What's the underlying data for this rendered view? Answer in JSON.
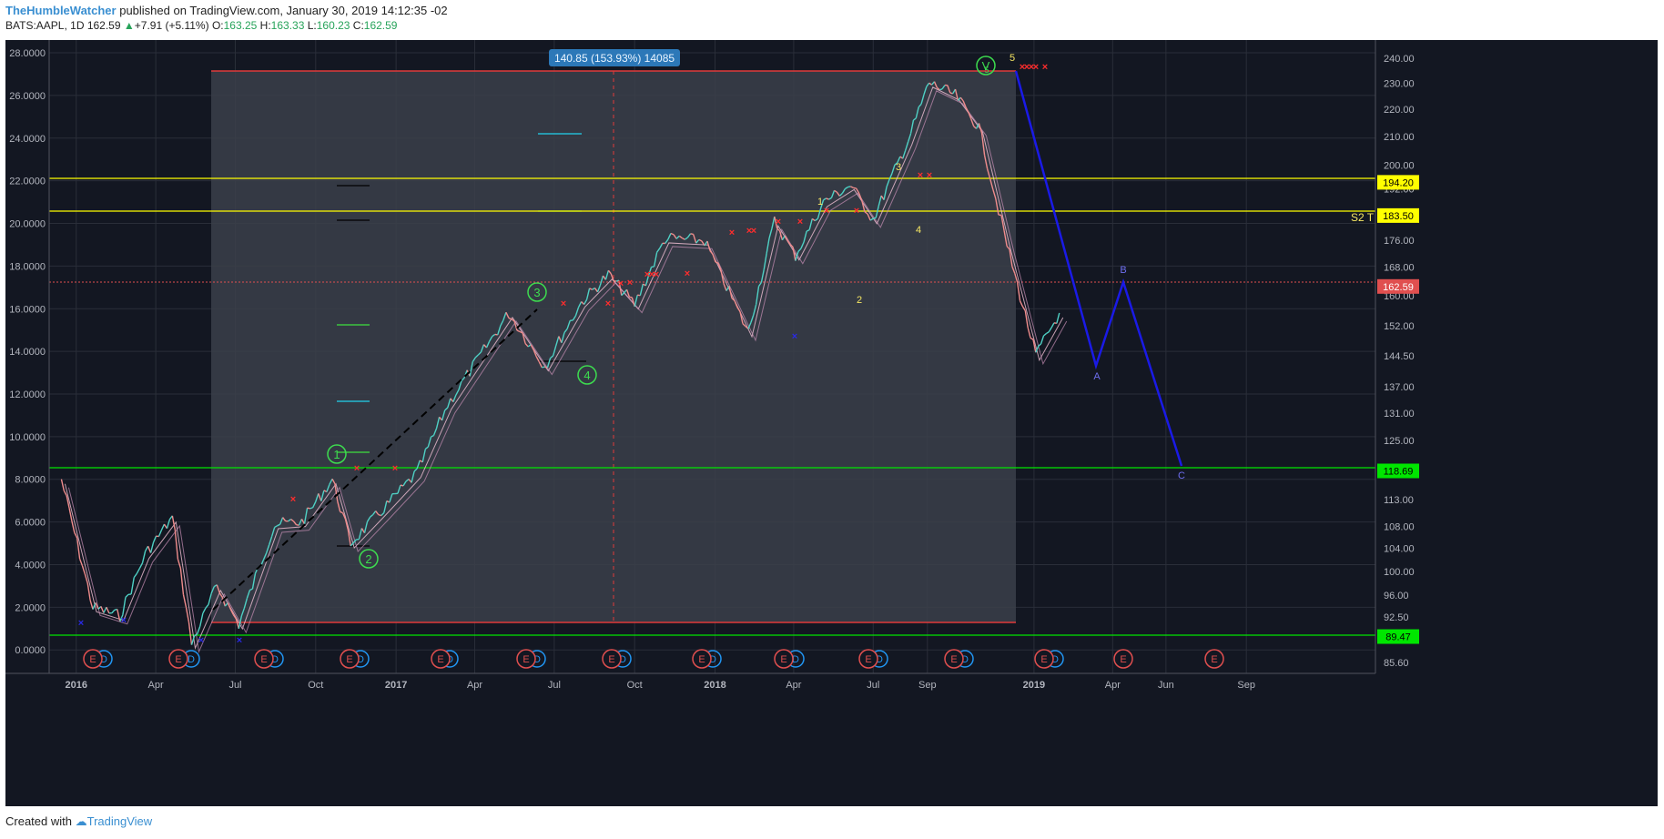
{
  "header": {
    "author": "TheHumbleWatcher",
    "published": "published on TradingView.com, January 30, 2019 14:12:35 -02",
    "symbol": "BATS:AAPL, 1D",
    "last": "162.59",
    "change": "+7.91 (+5.11%)",
    "open_label": "O:",
    "open": "163.25",
    "high_label": "H:",
    "high": "163.33",
    "low_label": "L:",
    "low": "160.23",
    "close_label": "C:",
    "close": "162.59"
  },
  "footer": {
    "created_with": "Created with",
    "brand": "TradingView"
  },
  "colors": {
    "bg": "#131722",
    "grid": "#2a2e39",
    "axis_text": "#b2b5be",
    "candle_up": "#4fd1c5",
    "candle_down": "#f08c8c",
    "yellow_line": "#ffff00",
    "green_line": "#00e600",
    "red_line": "#e03a3a",
    "wave_green": "#3ddc4f",
    "wave_blue": "#1a1ae6"
  },
  "chart_data": {
    "type": "line",
    "title": "",
    "xlabel": "",
    "ylabel": "",
    "x_ticks": [
      "2016",
      "Apr",
      "Jul",
      "Oct",
      "2017",
      "Apr",
      "Jul",
      "Oct",
      "2018",
      "Apr",
      "Jul",
      "Sep",
      "2019",
      "Apr",
      "Jun",
      "Sep"
    ],
    "left_axis": {
      "ticks": [
        "28.0000",
        "26.0000",
        "24.0000",
        "22.0000",
        "20.0000",
        "18.0000",
        "16.0000",
        "14.0000",
        "12.0000",
        "10.0000",
        "8.0000",
        "6.0000",
        "4.0000",
        "2.0000",
        "0.0000"
      ],
      "ylim": [
        -1.1,
        28.6
      ]
    },
    "right_axis": {
      "ticks": [
        "240.00",
        "230.00",
        "220.00",
        "210.00",
        "200.00",
        "192.00",
        "183.50",
        "176.00",
        "168.00",
        "160.00",
        "152.00",
        "144.50",
        "137.00",
        "131.00",
        "125.00",
        "119.00",
        "113.00",
        "108.00",
        "104.00",
        "100.00",
        "96.00",
        "92.50",
        "89.47",
        "85.60"
      ],
      "scale": "log"
    },
    "price_labels": [
      {
        "value": "194.20",
        "color": "#ffff00",
        "text_color": "#000000"
      },
      {
        "value": "183.50",
        "color": "#ffff00",
        "text_color": "#000000"
      },
      {
        "value": "162.59",
        "color": "#e04f4f",
        "text_color": "#ffffff"
      },
      {
        "value": "118.69",
        "color": "#00e600",
        "text_color": "#000000"
      },
      {
        "value": "89.47",
        "color": "#00e600",
        "text_color": "#000000"
      }
    ],
    "measure_label": "140.85 (153.93%) 14085",
    "side_label": "S2 T",
    "series": [
      {
        "x": [
          "2015-12-15",
          "2016-01-20",
          "2016-02-20",
          "2016-03-20",
          "2016-04-20",
          "2016-05-12",
          "2016-06-10",
          "2016-07-05",
          "2016-08-15",
          "2016-09-15",
          "2016-10-20",
          "2016-11-10",
          "2016-12-15",
          "2017-01-25",
          "2017-03-01",
          "2017-05-10",
          "2017-06-20",
          "2017-08-01",
          "2017-09-01",
          "2017-10-01",
          "2017-11-05",
          "2017-12-20",
          "2018-02-08",
          "2018-03-10",
          "2018-04-03",
          "2018-05-05",
          "2018-06-05",
          "2018-07-01",
          "2018-08-10",
          "2018-09-03",
          "2018-10-03",
          "2018-10-30",
          "2018-12-01",
          "2019-01-03",
          "2019-01-30"
        ],
        "values": [
          8.0,
          2.0,
          1.6,
          4.5,
          6.2,
          0.3,
          3.0,
          1.2,
          5.9,
          6.0,
          8.0,
          5.0,
          6.5,
          8.3,
          11.5,
          15.8,
          13.3,
          16.3,
          17.6,
          16.2,
          19.3,
          19.2,
          14.9,
          20.1,
          18.5,
          21.0,
          21.8,
          20.2,
          23.9,
          26.6,
          26.0,
          24.5,
          19.0,
          13.8,
          15.8
        ]
      }
    ],
    "labels": {
      "v_circle": "V",
      "v_sub": "5",
      "circ1": "1",
      "circ2": "2",
      "circ3": "3",
      "circ4": "4",
      "w1": "1",
      "w2": "2",
      "w3": "3",
      "w4": "4",
      "w5": "5",
      "a": "A",
      "b": "B",
      "c": "C",
      "earnings": "E",
      "dividend": "D"
    }
  }
}
